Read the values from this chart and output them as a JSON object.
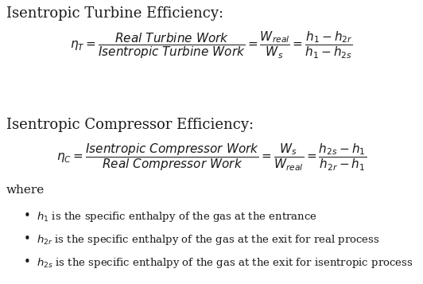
{
  "bg_color": "#ffffff",
  "text_color": "#1a1a1a",
  "title1": "Isentropic Turbine Efficiency:",
  "title2": "Isentropic Compressor Efficiency:",
  "where_label": "where",
  "bullet1_text": " is the specific enthalpy of the gas at the entrance",
  "bullet2_text": " is the specific enthalpy of the gas at the exit for real process",
  "bullet3_text": " is the specific enthalpy of the gas at the exit for isentropic process",
  "title_fs": 13,
  "eq_fs": 11,
  "where_fs": 11,
  "bullet_fs": 9.5
}
